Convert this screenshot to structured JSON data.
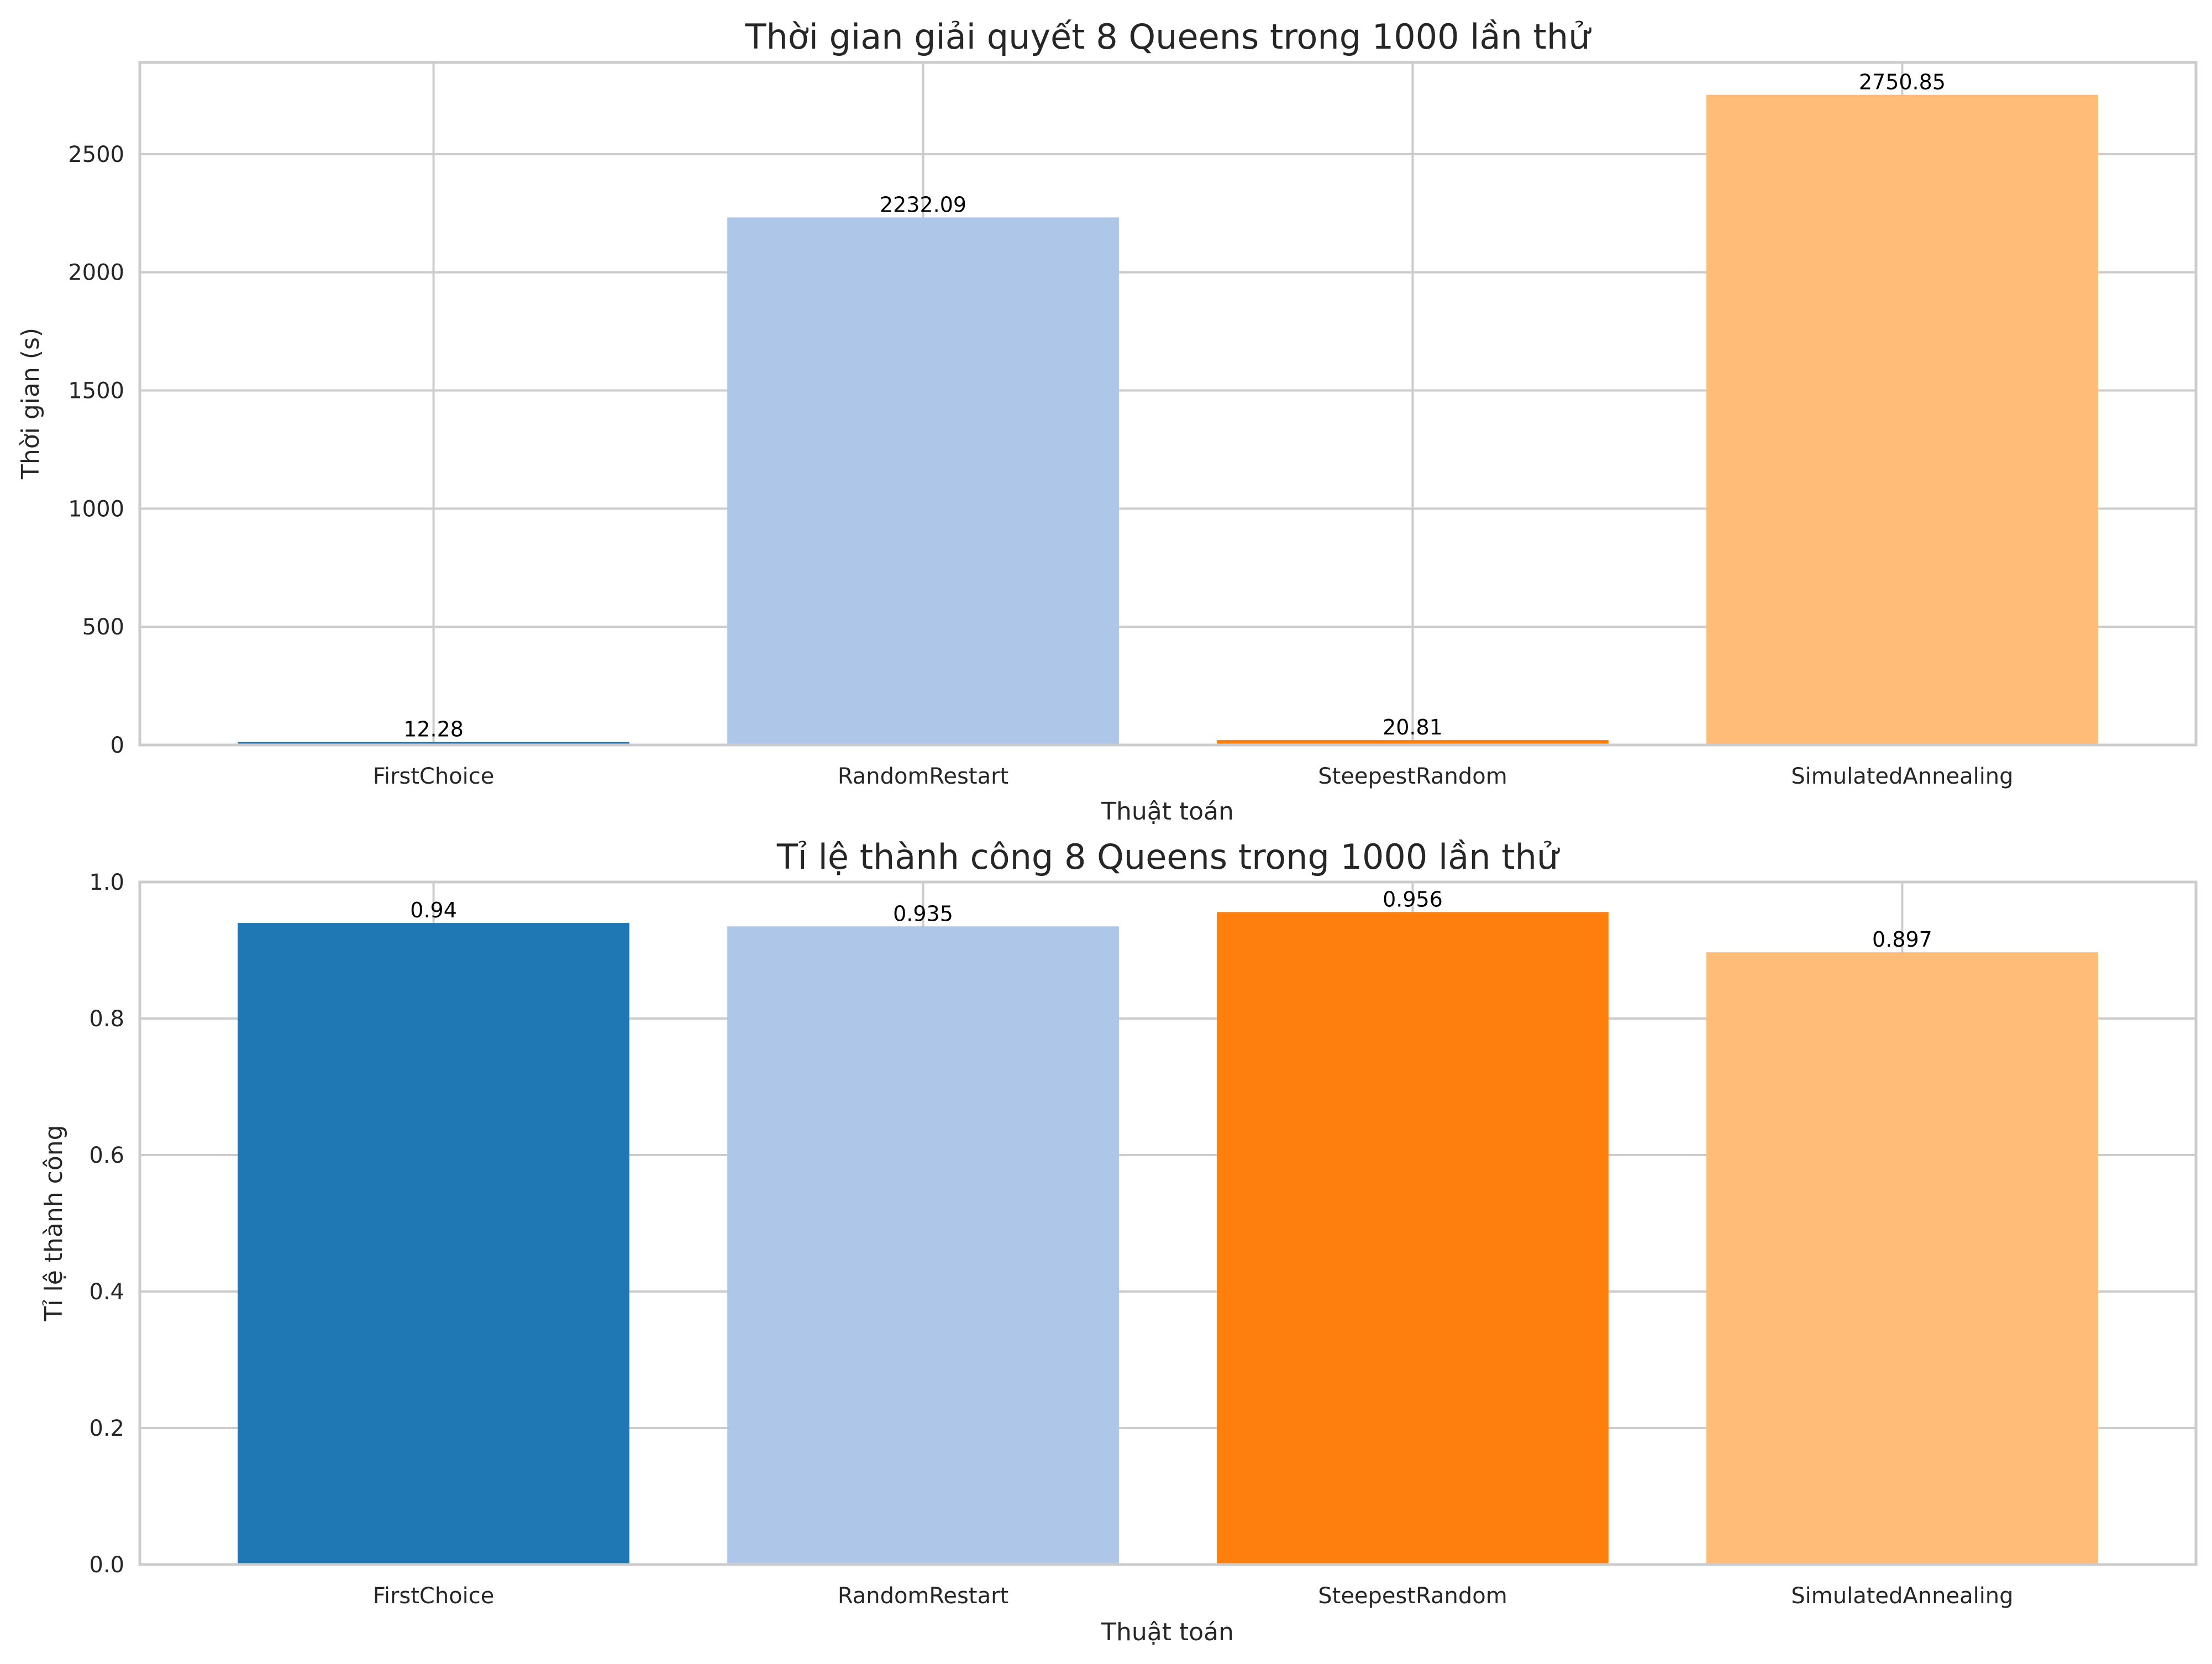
{
  "chart_data": [
    {
      "type": "bar",
      "title": "Thời gian giải quyết 8 Queens trong 1000 lần thử",
      "xlabel": "Thuật toán",
      "ylabel": "Thời gian (s)",
      "categories": [
        "FirstChoice",
        "RandomRestart",
        "SteepestRandom",
        "SimulatedAnnealing"
      ],
      "values": [
        12.28,
        2232.09,
        20.81,
        2750.85
      ],
      "value_labels": [
        "12.28",
        "2232.09",
        "20.81",
        "2750.85"
      ],
      "colors": [
        "#1f77b4",
        "#aec7e8",
        "#ff7f0e",
        "#ffbb78"
      ],
      "ylim": [
        0,
        2888
      ],
      "yticks": [
        0,
        500,
        1000,
        1500,
        2000,
        2500
      ],
      "ytick_labels": [
        "0",
        "500",
        "1000",
        "1500",
        "2000",
        "2500"
      ],
      "grid": true
    },
    {
      "type": "bar",
      "title": "Tỉ lệ thành công 8 Queens trong 1000 lần thử",
      "xlabel": "Thuật toán",
      "ylabel": "Tỉ lệ thành công",
      "categories": [
        "FirstChoice",
        "RandomRestart",
        "SteepestRandom",
        "SimulatedAnnealing"
      ],
      "values": [
        0.94,
        0.935,
        0.956,
        0.897
      ],
      "value_labels": [
        "0.94",
        "0.935",
        "0.956",
        "0.897"
      ],
      "colors": [
        "#1f77b4",
        "#aec7e8",
        "#ff7f0e",
        "#ffbb78"
      ],
      "ylim": [
        0,
        1.0
      ],
      "yticks": [
        0,
        0.2,
        0.4,
        0.6,
        0.8,
        1.0
      ],
      "ytick_labels": [
        "0.0",
        "0.2",
        "0.4",
        "0.6",
        "0.8",
        "1.0"
      ],
      "grid": true
    }
  ]
}
